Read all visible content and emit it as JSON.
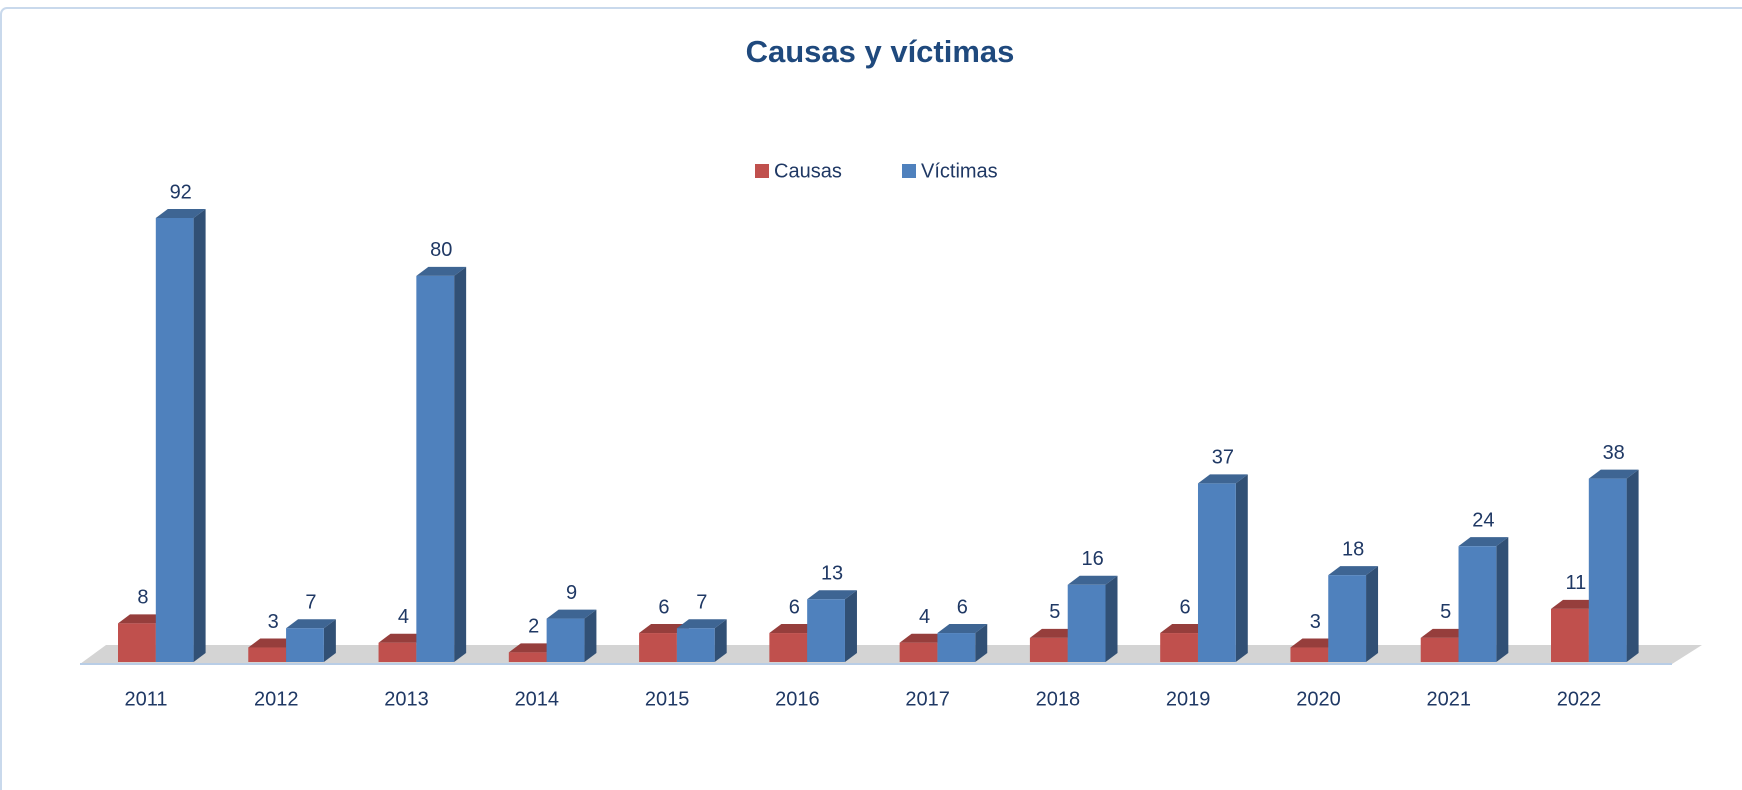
{
  "chart_data": {
    "type": "bar3d",
    "title": "Causas y víctimas",
    "categories": [
      "2011",
      "2012",
      "2013",
      "2014",
      "2015",
      "2016",
      "2017",
      "2018",
      "2019",
      "2020",
      "2021",
      "2022"
    ],
    "series": [
      {
        "name": "Causas",
        "color": "#c0504d",
        "values": [
          8,
          3,
          4,
          2,
          6,
          6,
          4,
          5,
          6,
          3,
          5,
          11
        ]
      },
      {
        "name": "Víctimas",
        "color": "#4f81bd",
        "values": [
          92,
          7,
          80,
          9,
          7,
          13,
          6,
          16,
          37,
          18,
          24,
          38
        ]
      }
    ],
    "legend": "top"
  }
}
